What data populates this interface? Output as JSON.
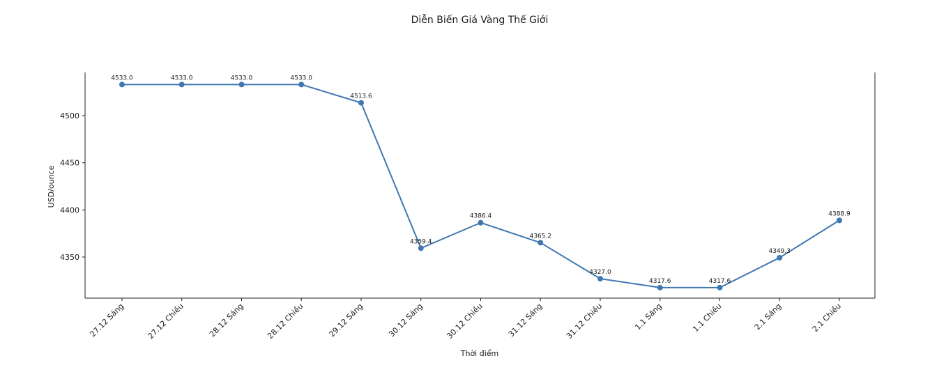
{
  "chart_data": {
    "type": "line",
    "title": "Diễn Biến Giá Vàng Thế Giới",
    "xlabel": "Thời điểm",
    "ylabel": "USD/ounce",
    "categories": [
      "27.12 Sáng",
      "27.12 Chiều",
      "28.12 Sáng",
      "28.12 Chiều",
      "29.12 Sáng",
      "30.12 Sáng",
      "30.12 Chiều",
      "31.12 Sáng",
      "31.12 Chiều",
      "1.1 Sáng",
      "1.1 Chiều",
      "2.1 Sáng",
      "2.1 Chiều"
    ],
    "series": [
      {
        "name": "USD/ounce",
        "values": [
          4533.0,
          4533.0,
          4533.0,
          4533.0,
          4513.6,
          4359.4,
          4386.4,
          4365.2,
          4327.0,
          4317.6,
          4317.6,
          4349.3,
          4388.9
        ],
        "color": "#3f77b0"
      }
    ],
    "data_labels": [
      "4533.0",
      "4533.0",
      "4533.0",
      "4533.0",
      "4513.6",
      "4359.4",
      "4386.4",
      "4365.2",
      "4327.0",
      "4317.6",
      "4317.6",
      "4349.3",
      "4388.9"
    ],
    "yticks": [
      4350,
      4400,
      4450,
      4500
    ],
    "ylim": [
      4306.1,
      4545.6
    ],
    "grid": false,
    "legend": "none",
    "spines": "left, right, bottom"
  }
}
